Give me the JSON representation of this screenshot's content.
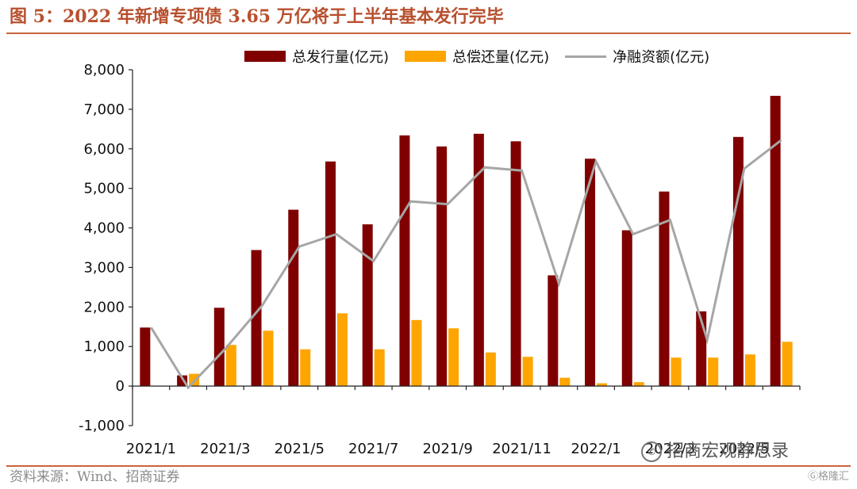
{
  "header": {
    "title": "图 5：2022 年新增专项债 3.65 万亿将于上半年基本发行完毕"
  },
  "footer": {
    "source": "资料来源：Wind、招商证券"
  },
  "watermark": {
    "text": "招商宏观静思录",
    "icon": "wechat-icon"
  },
  "badge": {
    "text": "格隆汇",
    "icon": "gelonghui-logo-icon"
  },
  "colors": {
    "issuance": "#800000",
    "repayment": "#ffa500",
    "net": "#a6a6a6",
    "accent": "#c8643c"
  },
  "chart_data": {
    "type": "bar",
    "title": "",
    "xlabel": "",
    "ylabel": "",
    "ylim": [
      -1000,
      8000
    ],
    "yticks": [
      -1000,
      0,
      1000,
      2000,
      3000,
      4000,
      5000,
      6000,
      7000,
      8000
    ],
    "ytick_labels": [
      "-1,000",
      "0",
      "1,000",
      "2,000",
      "3,000",
      "4,000",
      "5,000",
      "6,000",
      "7,000",
      "8,000"
    ],
    "categories": [
      "2021/1",
      "2021/2",
      "2021/3",
      "2021/4",
      "2021/5",
      "2021/6",
      "2021/7",
      "2021/8",
      "2021/9",
      "2021/10",
      "2021/11",
      "2021/12",
      "2022/1",
      "2022/2",
      "2022/3",
      "2022/4",
      "2022/5",
      "2022/6"
    ],
    "xtick_labels": [
      "2021/1",
      "",
      "2021/3",
      "",
      "2021/5",
      "",
      "2021/7",
      "",
      "2021/9",
      "",
      "2021/11",
      "",
      "2022/1",
      "",
      "2022/3",
      "",
      "2022/5",
      ""
    ],
    "legend_position": "top",
    "grid": false,
    "series": [
      {
        "name": "总发行量(亿元)",
        "type": "bar",
        "values": [
          1480,
          270,
          1980,
          3440,
          4460,
          5680,
          4090,
          6340,
          6060,
          6380,
          6190,
          2800,
          5750,
          3940,
          4920,
          1890,
          6300,
          7340
        ]
      },
      {
        "name": "总偿还量(亿元)",
        "type": "bar",
        "values": [
          0,
          310,
          1040,
          1400,
          930,
          1840,
          930,
          1670,
          1460,
          850,
          740,
          210,
          70,
          100,
          720,
          720,
          800,
          1120
        ]
      },
      {
        "name": "净融资额(亿元)",
        "type": "line",
        "values": [
          1480,
          -40,
          940,
          2040,
          3530,
          3840,
          3160,
          4670,
          4600,
          5530,
          5450,
          2590,
          5680,
          3840,
          4200,
          1170,
          5500,
          6220
        ]
      }
    ]
  }
}
